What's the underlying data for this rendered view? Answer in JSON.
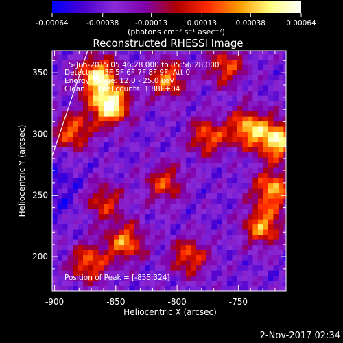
{
  "chart_data": {
    "type": "heatmap",
    "title": "Reconstructed RHESSI Image",
    "xlabel": "Heliocentric X (arcsec)",
    "ylabel": "Heliocentric Y (arcsec)",
    "xlim": [
      -902,
      -711
    ],
    "ylim": [
      172,
      368
    ],
    "x_ticks": [
      -900,
      -850,
      -800,
      -750
    ],
    "y_ticks": [
      200,
      250,
      300,
      350
    ],
    "x_tick_labels": [
      "-900",
      "-850",
      "-800",
      "-750"
    ],
    "y_tick_labels": [
      "200",
      "250",
      "300",
      "350"
    ],
    "colorbar": {
      "range": [
        -0.00064,
        0.00064
      ],
      "ticks": [
        -0.00064,
        -0.00038,
        -0.00013,
        0.00013,
        0.00038,
        0.00064
      ],
      "tick_labels": [
        "-0.00064",
        "-0.00038",
        "-0.00013",
        "0.00013",
        "0.00038",
        "0.00064"
      ],
      "unit_label": "(photons cm⁻² s⁻¹ asec⁻²)",
      "colors": [
        "#0000ff",
        "#4a00d0",
        "#8a2bd8",
        "#8000a8",
        "#b00000",
        "#ff2a00",
        "#ff9a00",
        "#ffff80",
        "#ffffff"
      ]
    },
    "annotations": [
      "5-Jun-2015 05:46:28.000 to 05:56:28.000",
      "Detectors: 3F 5F 6F 7F 8F 9F, Att 0",
      "Energy Range: 12.0 - 25.0 keV",
      "Clean     Total counts: 1.88E+04",
      "Position of Peak = [-855,324]"
    ],
    "peak": {
      "x": -855,
      "y": 324
    },
    "bright_sources": [
      {
        "x": -855,
        "y": 324,
        "intensity": 0.00064
      },
      {
        "x": -865,
        "y": 348,
        "intensity": 0.00045
      },
      {
        "x": -718,
        "y": 295,
        "intensity": 0.0005
      },
      {
        "x": -742,
        "y": 305,
        "intensity": 0.00036
      },
      {
        "x": -722,
        "y": 255,
        "intensity": 0.00034
      },
      {
        "x": -730,
        "y": 225,
        "intensity": 0.0003
      },
      {
        "x": -842,
        "y": 212,
        "intensity": 0.00028
      },
      {
        "x": -872,
        "y": 195,
        "intensity": 0.00022
      },
      {
        "x": -885,
        "y": 302,
        "intensity": 0.00022
      },
      {
        "x": -808,
        "y": 345,
        "intensity": 0.00024
      },
      {
        "x": -775,
        "y": 298,
        "intensity": 0.0002
      },
      {
        "x": -790,
        "y": 200,
        "intensity": 0.00018
      },
      {
        "x": -810,
        "y": 260,
        "intensity": 0.00014
      },
      {
        "x": -760,
        "y": 355,
        "intensity": 0.00016
      },
      {
        "x": -860,
        "y": 245,
        "intensity": 0.00012
      }
    ],
    "dark_region": {
      "x": -898,
      "y": 255,
      "intensity": -0.0005
    },
    "limb_line": [
      {
        "x": -902,
        "y": 282
      },
      {
        "x": -873,
        "y": 368
      }
    ]
  },
  "footer": {
    "timestamp": "2-Nov-2017 02:34"
  }
}
